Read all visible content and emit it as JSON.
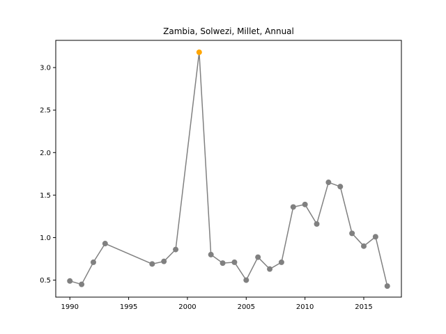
{
  "chart_data": {
    "type": "line",
    "title": "Zambia, Solwezi, Millet, Annual",
    "xlabel": "",
    "ylabel": "",
    "xlim": [
      1988.8,
      2018.2
    ],
    "ylim": [
      0.3,
      3.32
    ],
    "xticks": [
      1990,
      1995,
      2000,
      2005,
      2010,
      2015
    ],
    "yticks": [
      0.5,
      1.0,
      1.5,
      2.0,
      2.5,
      3.0
    ],
    "ytick_labels": [
      "0.5",
      "1.0",
      "1.5",
      "2.0",
      "2.5",
      "3.0"
    ],
    "grid": false,
    "line_color": "#808080",
    "highlight_color": "#ffa500",
    "highlight_x": 2001,
    "series": [
      {
        "x": [
          1990,
          1991,
          1992,
          1993,
          1997,
          1998,
          1999,
          2001,
          2002,
          2003,
          2004,
          2005,
          2006,
          2007,
          2008,
          2009,
          2010,
          2011,
          2012,
          2013,
          2014,
          2015,
          2016,
          2017
        ],
        "y": [
          0.49,
          0.45,
          0.71,
          0.93,
          0.69,
          0.72,
          0.86,
          3.18,
          0.8,
          0.7,
          0.71,
          0.5,
          0.77,
          0.63,
          0.71,
          1.36,
          1.39,
          1.16,
          1.65,
          1.6,
          1.05,
          0.9,
          1.01,
          0.43
        ]
      }
    ]
  }
}
